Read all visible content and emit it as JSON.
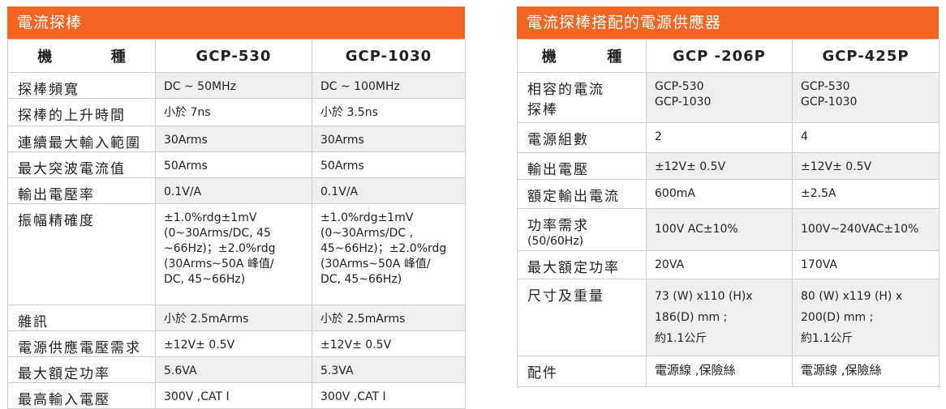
{
  "left": {
    "title": "電流探棒",
    "header": {
      "kind_a": "機",
      "kind_b": "種",
      "col1": "GCP-530",
      "col2": "GCP-1030"
    },
    "rows": [
      {
        "label": "探棒頻寬",
        "v1": "DC ~ 50MHz",
        "v2": "DC ~ 100MHz"
      },
      {
        "label": "探棒的上升時間",
        "v1": "小於 7ns",
        "v2": "小於 3.5ns"
      },
      {
        "label": "連續最大輸入範圍",
        "v1": "30Arms",
        "v2": "30Arms"
      },
      {
        "label": "最大突波電流值",
        "v1": "50Arms",
        "v2": "50Arms"
      },
      {
        "label": "輸出電壓率",
        "v1": "0.1V/A",
        "v2": "0.1V/A"
      },
      {
        "label": "振幅精確度",
        "v1_lines": [
          "±1.0%rdg±1mV",
          "(0~30Arms/DC, 45",
          "~66Hz)；±2.0%rdg",
          "(30Arms~50A 峰值/",
          "DC, 45~66Hz)"
        ],
        "v2_lines": [
          "±1.0%rdg±1mV",
          "(0~30Arms/DC ,",
          "45~66Hz)；±2.0%rdg",
          "(30Arms~50A 峰值/",
          "DC, 45~66Hz)"
        ]
      },
      {
        "label": "雜訊",
        "v1": "小於 2.5mArms",
        "v2": "小於 2.5mArms"
      },
      {
        "label": "電源供應電壓需求",
        "v1": "±12V± 0.5V",
        "v2": "±12V± 0.5V"
      },
      {
        "label": "最大額定功率",
        "v1": "5.6VA",
        "v2": "5.3VA"
      },
      {
        "label": "最高輸入電壓",
        "v1": "300V ,CAT I",
        "v2": "300V ,CAT I"
      }
    ]
  },
  "right": {
    "title": "電流探棒搭配的電源供應器",
    "header": {
      "kind_a": "機",
      "kind_b": "種",
      "col1": "GCP -206P",
      "col2": "GCP-425P"
    },
    "rows": [
      {
        "label_lines": [
          "相容的電流",
          "探棒"
        ],
        "v1_lines": [
          "GCP-530",
          "GCP-1030"
        ],
        "v2_lines": [
          "GCP-530",
          "GCP-1030"
        ]
      },
      {
        "label": "電源組數",
        "v1": "2",
        "v2": "4"
      },
      {
        "label": "輸出電壓",
        "v1": "±12V± 0.5V",
        "v2": "±12V± 0.5V"
      },
      {
        "label": "額定輸出電流",
        "v1": "600mA",
        "v2": "±2.5A"
      },
      {
        "label": "功率需求",
        "label_sub": "(50/60Hz)",
        "v1": "100V AC±10%",
        "v2": "100V~240VAC±10%"
      },
      {
        "label": "最大額定功率",
        "v1": "20VA",
        "v2": "170VA"
      },
      {
        "label": "尺寸及重量",
        "v1_lines": [
          "73 (W) x110 (H)x",
          "186(D) mm ;",
          "約1.1公斤"
        ],
        "v2_lines": [
          "80 (W) x119 (H) x",
          "200(D)  mm ;",
          "約1.1公斤"
        ]
      },
      {
        "label": "配件",
        "v1": "電源線 ,保險絲",
        "v2": "電源線 ,保險絲"
      }
    ]
  }
}
